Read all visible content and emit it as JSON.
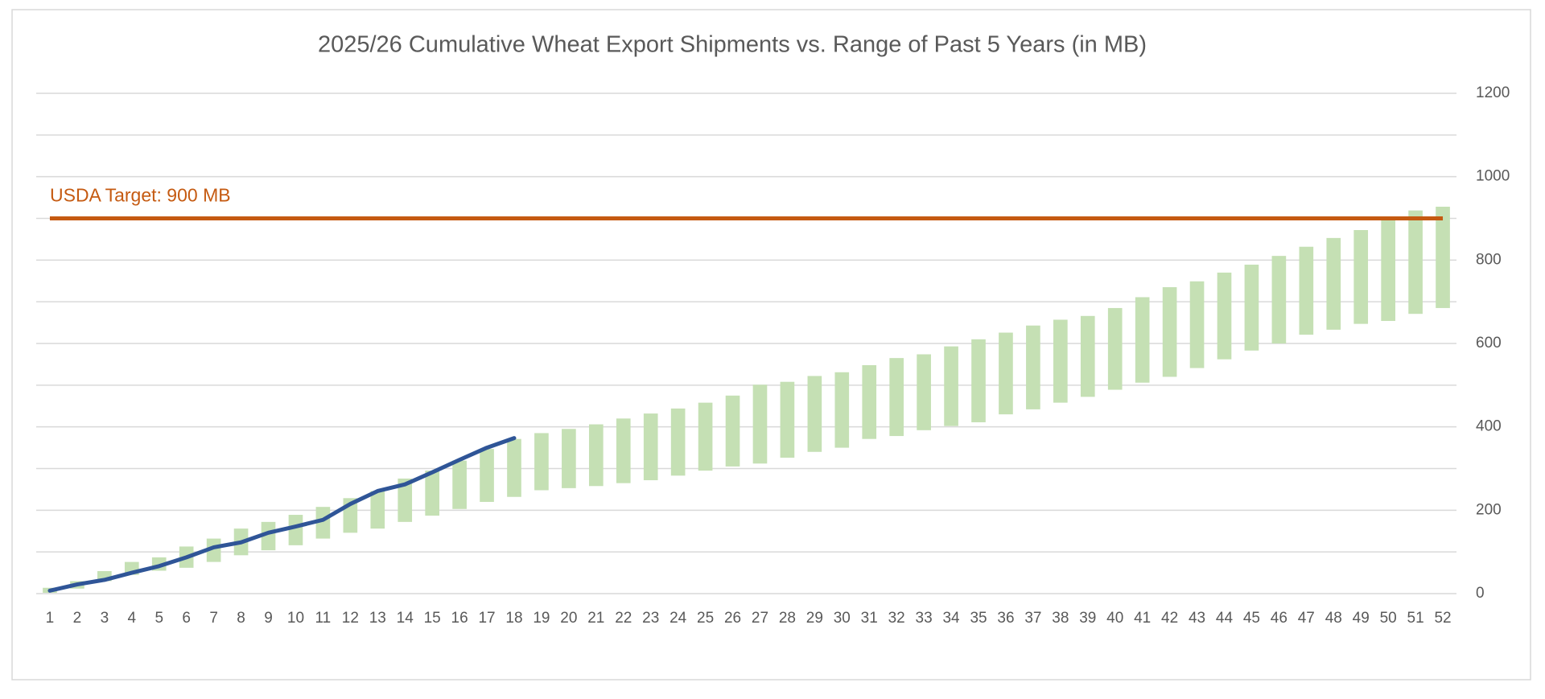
{
  "chart_data": {
    "type": "bar",
    "title": "2025/26 Cumulative Wheat Export Shipments vs. Range of Past 5 Years (in MB)",
    "categories": [
      "1",
      "2",
      "3",
      "4",
      "5",
      "6",
      "7",
      "8",
      "9",
      "10",
      "11",
      "12",
      "13",
      "14",
      "15",
      "16",
      "17",
      "18",
      "19",
      "20",
      "21",
      "22",
      "23",
      "24",
      "25",
      "26",
      "27",
      "28",
      "29",
      "30",
      "31",
      "32",
      "33",
      "34",
      "35",
      "36",
      "37",
      "38",
      "39",
      "40",
      "41",
      "42",
      "43",
      "44",
      "45",
      "46",
      "47",
      "48",
      "49",
      "50",
      "51",
      "52"
    ],
    "range": {
      "color": "#c5e0b4",
      "low": [
        2,
        12,
        30,
        45,
        55,
        62,
        76,
        92,
        104,
        116,
        132,
        146,
        156,
        172,
        187,
        203,
        220,
        232,
        248,
        253,
        258,
        265,
        272,
        283,
        295,
        305,
        312,
        326,
        340,
        350,
        371,
        378,
        392,
        402,
        411,
        430,
        442,
        458,
        472,
        489,
        506,
        520,
        541,
        562,
        583,
        600,
        621,
        633,
        647,
        654,
        671,
        685
      ],
      "high": [
        14,
        30,
        54,
        76,
        87,
        113,
        132,
        156,
        172,
        189,
        208,
        229,
        246,
        276,
        295,
        319,
        347,
        371,
        385,
        395,
        406,
        420,
        432,
        444,
        458,
        475,
        501,
        508,
        522,
        531,
        548,
        565,
        574,
        593,
        610,
        626,
        643,
        657,
        666,
        685,
        711,
        735,
        749,
        770,
        789,
        810,
        832,
        853,
        872,
        900,
        919,
        928
      ]
    },
    "line": {
      "color": "#2f5597",
      "values": [
        7,
        22,
        33,
        50,
        66,
        87,
        111,
        123,
        146,
        161,
        177,
        215,
        246,
        262,
        291,
        321,
        350,
        373,
        null,
        null,
        null,
        null,
        null,
        null,
        null,
        null,
        null,
        null,
        null,
        null,
        null,
        null,
        null,
        null,
        null,
        null,
        null,
        null,
        null,
        null,
        null,
        null,
        null,
        null,
        null,
        null,
        null,
        null,
        null,
        null,
        null,
        null
      ]
    },
    "target": {
      "value": 900,
      "label": "USDA Target: 900 MB",
      "color": "#c55a11"
    },
    "ylim": [
      0,
      1200
    ],
    "yticks": [
      0,
      200,
      400,
      600,
      800,
      1000,
      1200
    ],
    "minor_yticks": [
      100,
      300,
      500,
      700,
      900,
      1100
    ],
    "grid": true
  }
}
